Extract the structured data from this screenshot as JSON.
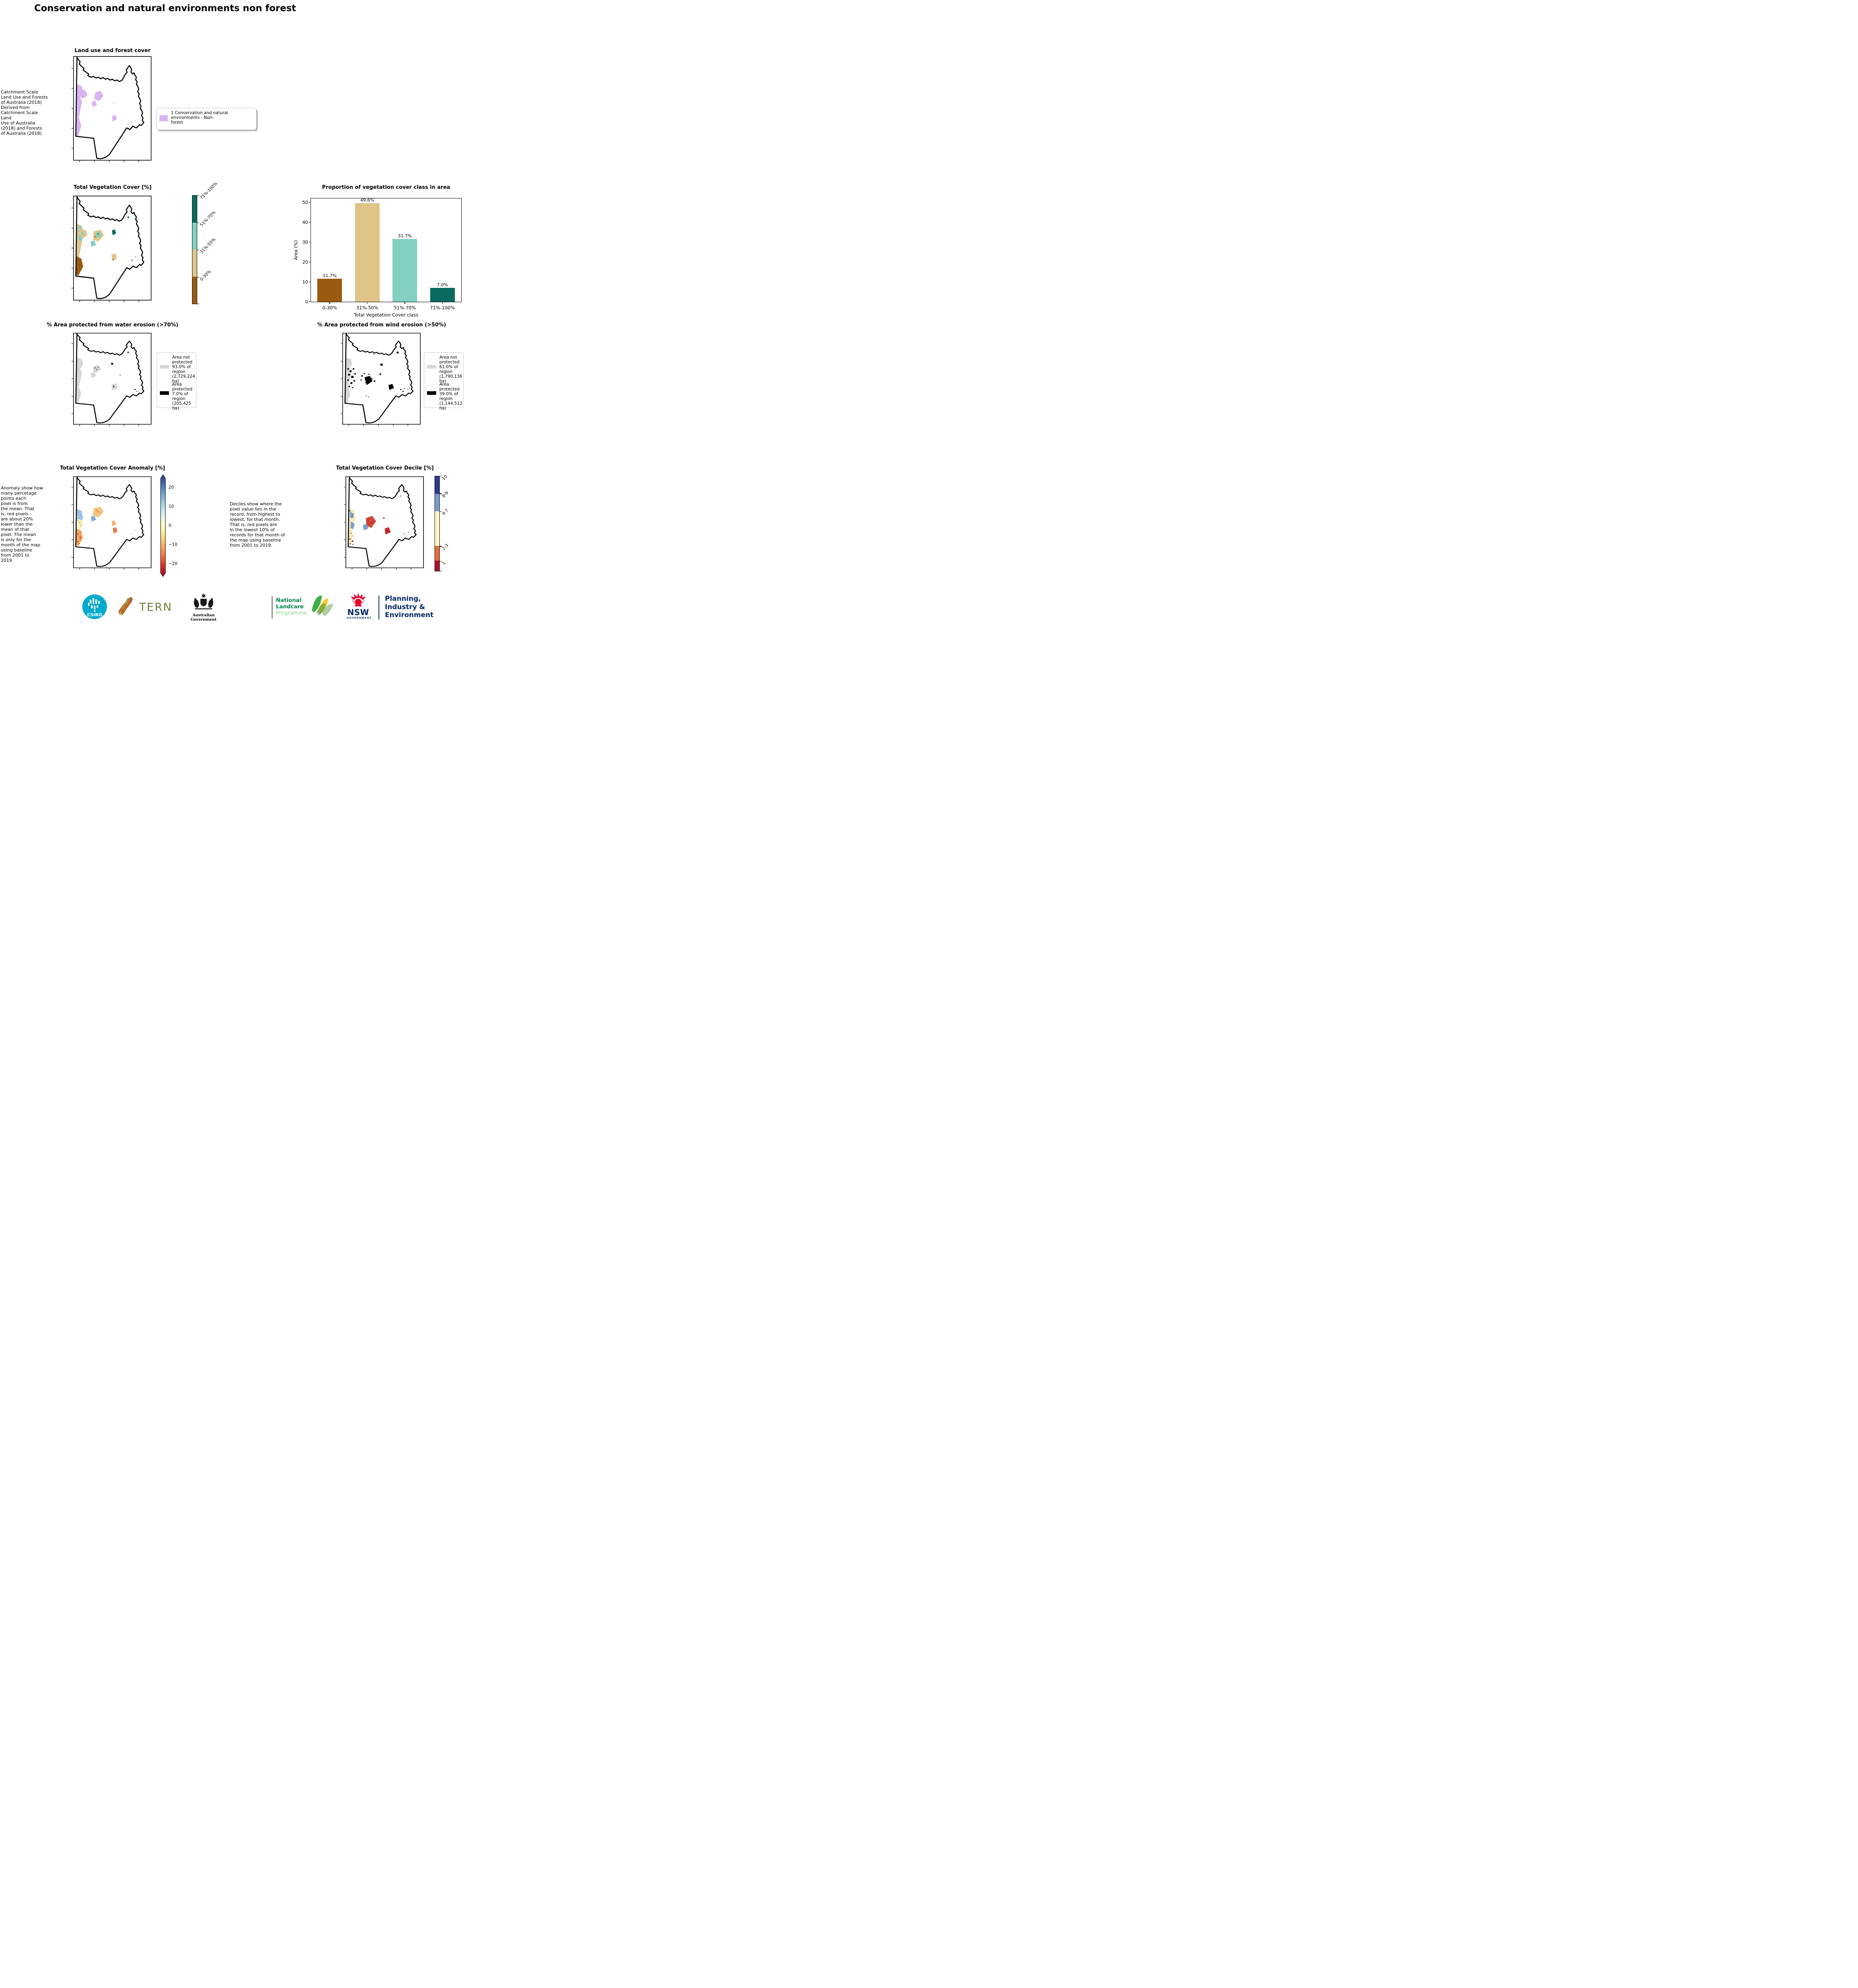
{
  "page": {
    "title": "Conservation and natural environments non forest"
  },
  "panels": {
    "land_use": {
      "title": "Land use and forest cover",
      "caption": " Catchment Scale\nLand Use and Forests\nof Australia (2018)\nDerived from\nCatchment Scale Land\nUse of Australia\n(2018) and Forests\nof Australia (2018)",
      "legend_label": "1 Conservation and natural environments - Non-\nforest",
      "legend_color": "#d9b3ef"
    },
    "veg_cover": {
      "title": "Total Vegetation Cover [%]",
      "colorbar": [
        {
          "label": "71%-100%",
          "color": "#0b6a60"
        },
        {
          "label": "51%-70%",
          "color": "#82d0c1"
        },
        {
          "label": "31%-50%",
          "color": "#dfc488"
        },
        {
          "label": "0-30%",
          "color": "#9a5a10"
        }
      ]
    },
    "water_erosion": {
      "title": "% Area protected from water erosion (>70%)",
      "legend": [
        {
          "label": "Area not\nprotected\n93.0% of\nregion\n(2,729,224\nha)",
          "color": "#d6d6d6"
        },
        {
          "label": "Area\nprotected\n7.0% of\nregion\n(205,425\nha)",
          "color": "#000000"
        }
      ]
    },
    "wind_erosion": {
      "title": "% Area protected from wind erosion (>50%)",
      "legend": [
        {
          "label": "Area not\nprotected\n61.0% of\nregion\n(1,790,136\nha)",
          "color": "#d6d6d6"
        },
        {
          "label": "Area\nprotected\n39.0% of\nregion\n(1,144,513\nha)",
          "color": "#000000"
        }
      ]
    },
    "anomaly": {
      "title": "Total Vegetation Cover Anomaly [%]",
      "caption": "Anomaly show how\nmany percetage\npoints each\npixel is from\nthe mean. That\nis, red pixels\nare about 20%\nlower than the\nmean of that\npixel. The mean\nis only for the\nmonth of the map\nusing baseline\nfrom 2001 to\n2019.",
      "colorbar_ticks": [
        "20",
        "10",
        "0",
        "−10",
        "−20"
      ]
    },
    "decile": {
      "title": "Total Vegetation Cover Decile [%]",
      "caption": "Deciles show where the\npixel value lies in the\nrecord, from highest to\nlowest, for that month.\nThat is, red pixels are\nin the lowest 10% of\nrecords for that month of\nthe map using baseline\nfrom 2001 to 2019.",
      "colorbar": [
        {
          "label": "10",
          "color": "#2b3a90"
        },
        {
          "label": "8-9",
          "color": "#7b9bd1"
        },
        {
          "label": "4-7",
          "color": "#fdf7c5"
        },
        {
          "label": "2-3",
          "color": "#e36f3c"
        },
        {
          "label": "1",
          "color": "#ac1127"
        }
      ]
    }
  },
  "chart_data": {
    "type": "bar",
    "title": "Proportion of vegetation cover class in area",
    "categories": [
      "0-30%",
      "31%-50%",
      "51%-70%",
      "71%-100%"
    ],
    "values": [
      11.7,
      49.6,
      31.7,
      7.0
    ],
    "labels": [
      "11.7%",
      "49.6%",
      "31.7%",
      "7.0%"
    ],
    "colors": [
      "#9a5a10",
      "#dfc488",
      "#82d0c1",
      "#0b6a60"
    ],
    "xlabel": "Total Vegetation Cover class",
    "ylabel": "Area (%)",
    "ylim": [
      0,
      52
    ],
    "yticks": [
      "0",
      "10",
      "20",
      "30",
      "40",
      "50"
    ],
    "grid": false,
    "legend_position": "none"
  },
  "colors": {
    "purple": "#d9b3ef",
    "not_protected_gray": "#d6d6d6",
    "protected_black": "#000000",
    "csiro_teal": "#00a9ce",
    "tern_olive": "#6e7f3c",
    "landcare_green": "#00854a",
    "landcare_light": "#93cf9e",
    "nsw_red": "#e4002b",
    "navy": "#002664"
  },
  "footer": {
    "csiro": "CSIRO",
    "tern": "TERN",
    "aus_gov": "Australian Government",
    "landcare_lines": [
      "National",
      "Landcare",
      "Programme"
    ],
    "nsw": "NSW",
    "nsw_sub": "GOVERNMENT",
    "planning_lines": [
      "Planning,",
      "Industry &",
      "Environment"
    ]
  }
}
